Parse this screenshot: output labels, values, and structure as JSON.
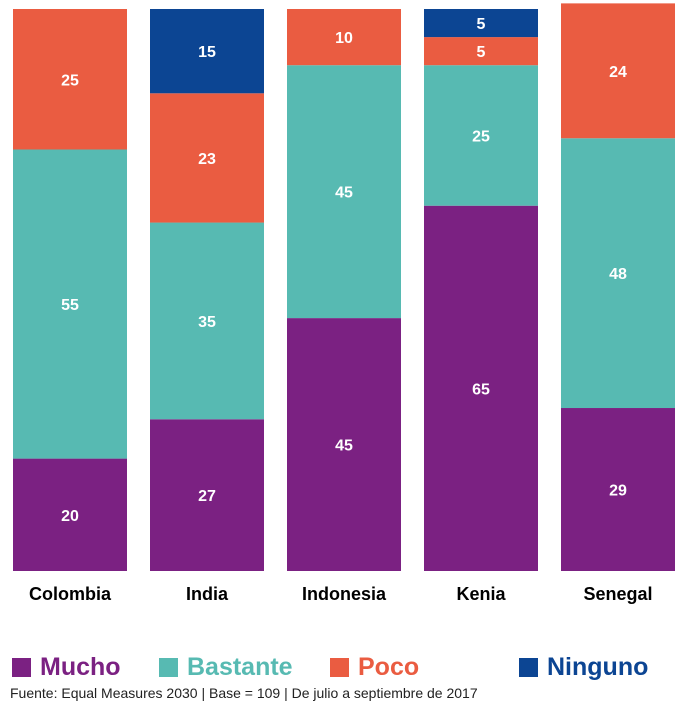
{
  "chart_data": {
    "type": "bar",
    "stacked": true,
    "categories": [
      "Colombia",
      "India",
      "Indonesia",
      "Kenia",
      "Senegal"
    ],
    "series": [
      {
        "name": "Mucho",
        "color": "#7b2182",
        "values": [
          20,
          27,
          45,
          65,
          29
        ]
      },
      {
        "name": "Bastante",
        "color": "#57bab2",
        "values": [
          55,
          35,
          45,
          25,
          48
        ]
      },
      {
        "name": "Poco",
        "color": "#ea5c41",
        "values": [
          25,
          23,
          10,
          5,
          24
        ]
      },
      {
        "name": "Ninguno",
        "color": "#0c4593",
        "values": [
          0,
          15,
          0,
          5,
          0
        ]
      }
    ],
    "ylim": [
      0,
      100
    ],
    "grid": false,
    "legend_position": "bottom"
  },
  "legend": {
    "mucho": "Mucho",
    "bastante": "Bastante",
    "poco": "Poco",
    "ninguno": "Ninguno"
  },
  "source": "Fuente: Equal Measures 2030  |  Base = 109  | De julio a septiembre de 2017"
}
